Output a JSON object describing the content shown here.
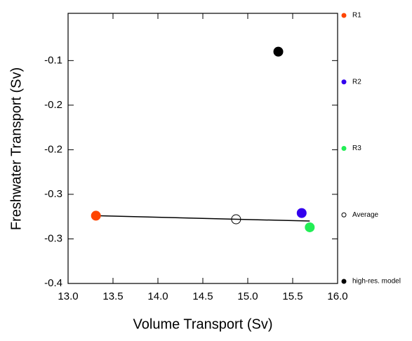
{
  "chart_data": {
    "type": "scatter",
    "x_label": "Volume Transport (Sv)",
    "y_label": "Freshwater Transport (Sv)",
    "xlim": [
      13.0,
      16.0
    ],
    "ylim": [
      -0.35,
      -0.047
    ],
    "xticks": [
      {
        "value": 13,
        "label": "13.0"
      },
      {
        "value": 13.5,
        "label": "13.5"
      },
      {
        "value": 14,
        "label": "14.0"
      },
      {
        "value": 14.5,
        "label": "14.5"
      },
      {
        "value": 15,
        "label": "15.0"
      },
      {
        "value": 15.5,
        "label": "15.5"
      },
      {
        "value": 16,
        "label": "16.0"
      }
    ],
    "yticks": [
      {
        "value": -0.1,
        "label": "-0.1"
      },
      {
        "value": -0.15,
        "label": "-0.2"
      },
      {
        "value": -0.2,
        "label": "-0.2"
      },
      {
        "value": -0.25,
        "label": "-0.3"
      },
      {
        "value": -0.3,
        "label": "-0.3"
      },
      {
        "value": -0.35,
        "label": "-0.4"
      }
    ],
    "series": [
      {
        "name": "R1",
        "color": "#ff4500",
        "filled": true,
        "x": [
          13.31
        ],
        "values": [
          -0.274
        ]
      },
      {
        "name": "R2",
        "color": "#3300ee",
        "filled": true,
        "x": [
          15.6
        ],
        "values": [
          -0.271
        ]
      },
      {
        "name": "R3",
        "color": "#22ee55",
        "filled": true,
        "x": [
          15.69
        ],
        "values": [
          -0.287
        ]
      },
      {
        "name": "Average",
        "color": "#000000",
        "filled": false,
        "x": [
          14.87
        ],
        "values": [
          -0.278
        ]
      },
      {
        "name": "high-res. model",
        "color": "#000000",
        "filled": true,
        "x": [
          15.34
        ],
        "values": [
          -0.09
        ]
      }
    ],
    "fit_line": {
      "color": "#000000",
      "x": [
        13.31,
        15.69
      ],
      "values": [
        -0.274,
        -0.28
      ]
    }
  }
}
